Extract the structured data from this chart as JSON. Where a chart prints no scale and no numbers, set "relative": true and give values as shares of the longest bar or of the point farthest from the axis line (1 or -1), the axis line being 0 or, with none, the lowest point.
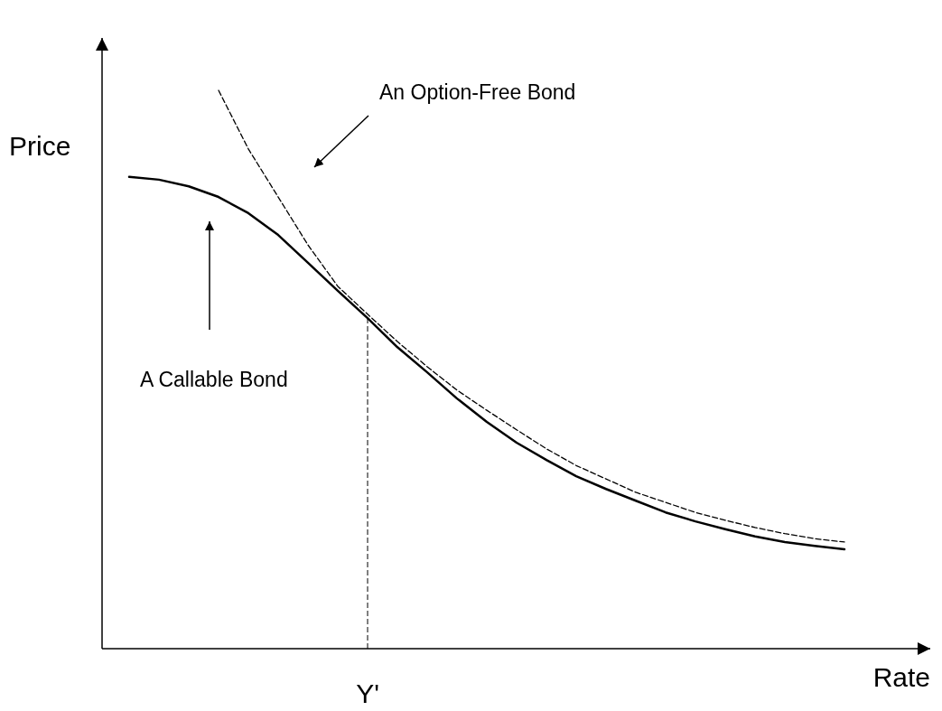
{
  "chart_data": {
    "type": "line",
    "relative": true,
    "xlabel": "Rate",
    "ylabel": "Price",
    "categories": [
      null,
      null,
      null,
      null,
      null,
      null,
      null,
      null,
      null,
      null,
      null,
      null,
      null,
      null,
      null,
      null,
      null,
      null,
      null,
      null,
      null,
      null,
      null,
      null,
      null
    ],
    "series": [
      {
        "color": "#000000",
        "line_style": "solid",
        "values": [
          0.845,
          0.84,
          0.828,
          0.809,
          0.78,
          0.741,
          0.691,
          0.641,
          0.592,
          0.54,
          0.495,
          0.448,
          0.406,
          0.369,
          0.338,
          0.309,
          0.286,
          0.265,
          0.244,
          0.228,
          0.214,
          0.201,
          0.191,
          0.184,
          0.178
        ]
      },
      {
        "color": "#000000",
        "line_style": "dashed",
        "values": [
          null,
          null,
          null,
          1,
          0.895,
          0.809,
          0.723,
          0.649,
          0.599,
          0.55,
          0.505,
          0.463,
          0.427,
          0.392,
          0.358,
          0.328,
          0.304,
          0.28,
          0.262,
          0.244,
          0.23,
          0.217,
          0.206,
          0.197,
          0.191
        ]
      }
    ],
    "annotations": [
      "An Option-Free Bond",
      "A Callable Bond",
      "Y'"
    ]
  }
}
